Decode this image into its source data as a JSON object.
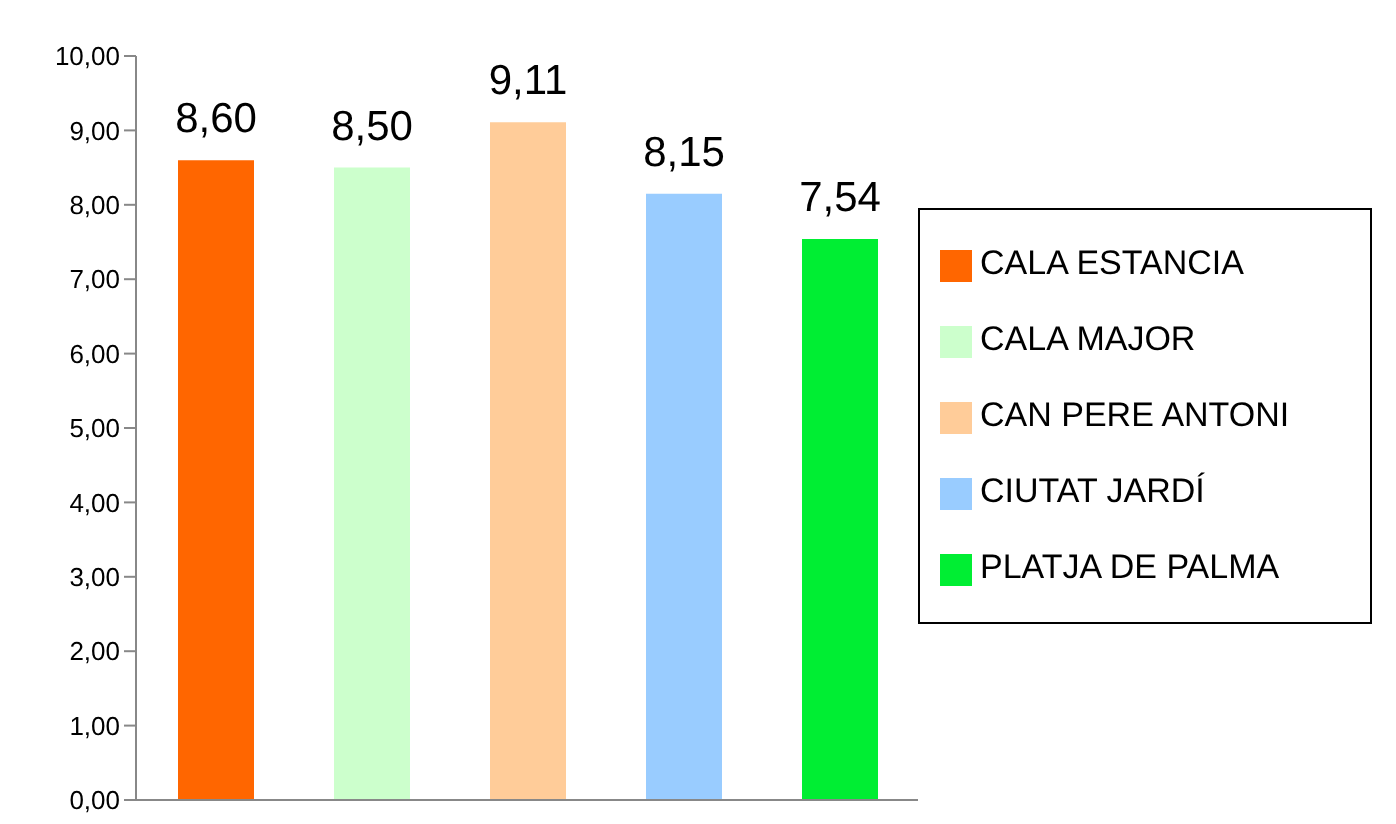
{
  "chart_data": {
    "type": "bar",
    "categories": [
      null
    ],
    "series": [
      {
        "name": "CALA ESTANCIA",
        "color": "#ff6600",
        "values": [
          8.6
        ],
        "value_labels": [
          "8,60"
        ]
      },
      {
        "name": "CALA MAJOR",
        "color": "#ccffcc",
        "values": [
          8.5
        ],
        "value_labels": [
          "8,50"
        ]
      },
      {
        "name": "CAN PERE ANTONI",
        "color": "#ffcc99",
        "values": [
          9.11
        ],
        "value_labels": [
          "9,11"
        ]
      },
      {
        "name": "CIUTAT JARDÍ",
        "color": "#99ccff",
        "values": [
          8.15
        ],
        "value_labels": [
          "8,15"
        ]
      },
      {
        "name": "PLATJA DE PALMA",
        "color": "#00ee33",
        "values": [
          7.54
        ],
        "value_labels": [
          "7,54"
        ]
      }
    ],
    "ylim": [
      0,
      10
    ],
    "yticks": [
      {
        "value": 0,
        "label": "0,00"
      },
      {
        "value": 1,
        "label": "1,00"
      },
      {
        "value": 2,
        "label": "2,00"
      },
      {
        "value": 3,
        "label": "3,00"
      },
      {
        "value": 4,
        "label": "4,00"
      },
      {
        "value": 5,
        "label": "5,00"
      },
      {
        "value": 6,
        "label": "6,00"
      },
      {
        "value": 7,
        "label": "7,00"
      },
      {
        "value": 8,
        "label": "8,00"
      },
      {
        "value": 9,
        "label": "9,00"
      },
      {
        "value": 10,
        "label": "10,00"
      }
    ],
    "legend": "right"
  }
}
